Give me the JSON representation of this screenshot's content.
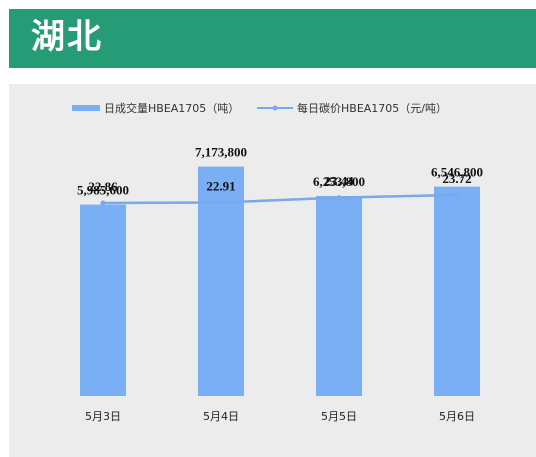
{
  "header": {
    "title": "湖北"
  },
  "colors": {
    "header_bg": "#259b76",
    "panel_bg": "#ececec",
    "bar": "#7aaef5",
    "line": "#78a9ea"
  },
  "chart_data": {
    "type": "bar",
    "title": "",
    "categories": [
      "5月3日",
      "5月4日",
      "5月5日",
      "5月6日"
    ],
    "series": [
      {
        "name": "日成交量HBEA1705（吨）",
        "type": "bar",
        "values": [
          5985600,
          7173800,
          6253800,
          6546800
        ],
        "labels": [
          "5,985,600",
          "7,173,800",
          "6,253,800",
          "6,546,800"
        ]
      },
      {
        "name": "每日碳价HBEA1705（元/吨）",
        "type": "line",
        "values": [
          22.86,
          22.91,
          23.44,
          23.72
        ],
        "labels": [
          "22.86",
          "22.91",
          "23.44",
          "23.72"
        ]
      }
    ],
    "legend_position": "top",
    "grid": false,
    "ylim_bar": [
      0,
      9600000
    ],
    "ylim_line": [
      20,
      26
    ]
  }
}
